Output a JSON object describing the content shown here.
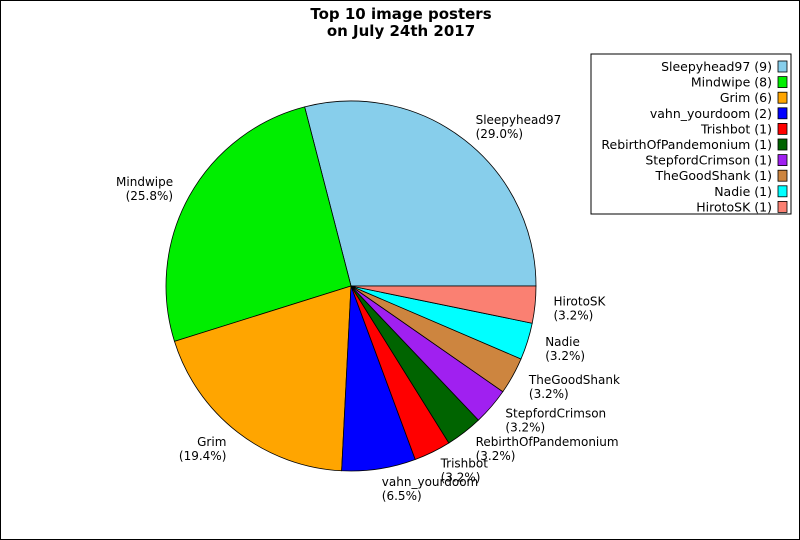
{
  "chart_data": {
    "type": "pie",
    "title_lines": [
      "Top 10 image posters",
      "on July 24th 2017"
    ],
    "slices": [
      {
        "name": "Sleepyhead97",
        "count": 9,
        "percent": "29.0%",
        "color": "#87ceeb",
        "legend": "Sleepyhead97 (9)"
      },
      {
        "name": "Mindwipe",
        "count": 8,
        "percent": "25.8%",
        "color": "#00ee00",
        "legend": "Mindwipe (8)"
      },
      {
        "name": "Grim",
        "count": 6,
        "percent": "19.4%",
        "color": "#ffa500",
        "legend": "Grim (6)"
      },
      {
        "name": "vahn_yourdoom",
        "count": 2,
        "percent": "6.5%",
        "color": "#0000ff",
        "legend": "vahn_yourdoom (2)"
      },
      {
        "name": "Trishbot",
        "count": 1,
        "percent": "3.2%",
        "color": "#ff0000",
        "legend": "Trishbot (1)"
      },
      {
        "name": "RebirthOfPandemonium",
        "count": 1,
        "percent": "3.2%",
        "color": "#006400",
        "legend": "RebirthOfPandemonium (1)"
      },
      {
        "name": "StepfordCrimson",
        "count": 1,
        "percent": "3.2%",
        "color": "#a020f0",
        "legend": "StepfordCrimson (1)"
      },
      {
        "name": "TheGoodShank",
        "count": 1,
        "percent": "3.2%",
        "color": "#cd853f",
        "legend": "TheGoodShank (1)"
      },
      {
        "name": "Nadie",
        "count": 1,
        "percent": "3.2%",
        "color": "#00ffff",
        "legend": "Nadie (1)"
      },
      {
        "name": "HirotoSK",
        "count": 1,
        "percent": "3.2%",
        "color": "#fa8072",
        "legend": "HirotoSK (1)"
      }
    ],
    "legend_position": "top-right",
    "start_angle": "3 o'clock",
    "direction": "counter-clockwise"
  }
}
